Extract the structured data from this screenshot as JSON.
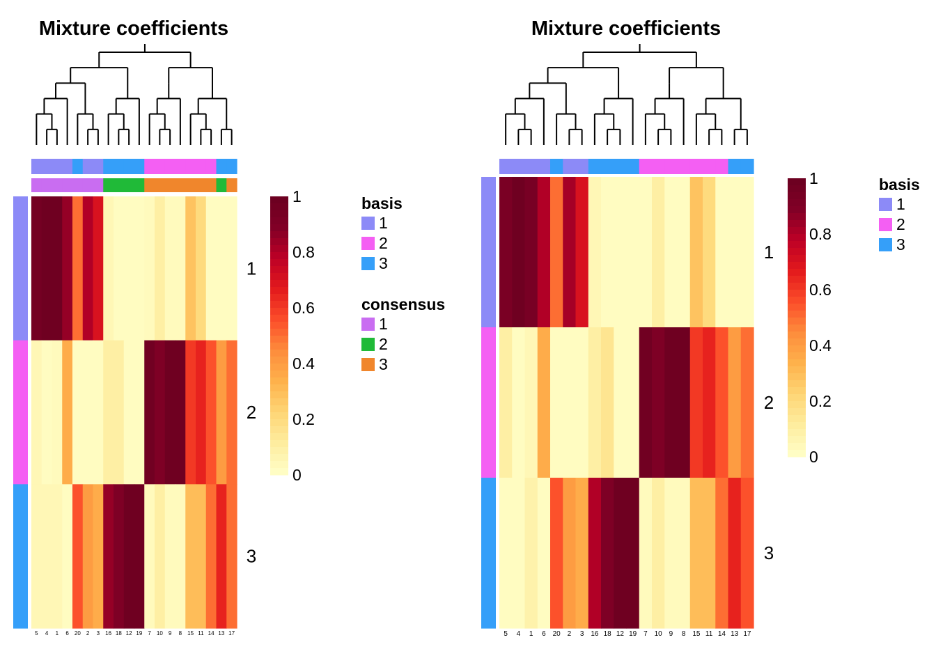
{
  "chart_data": [
    {
      "type": "heatmap",
      "title": "Mixture coefficients",
      "columns": [
        "5",
        "4",
        "1",
        "6",
        "20",
        "2",
        "3",
        "16",
        "18",
        "12",
        "19",
        "7",
        "10",
        "9",
        "8",
        "15",
        "11",
        "14",
        "13",
        "17"
      ],
      "rows": [
        "1",
        "2",
        "3"
      ],
      "values": [
        [
          0.95,
          0.98,
          0.98,
          0.85,
          0.5,
          0.8,
          0.7,
          0.05,
          0.02,
          0.02,
          0.02,
          0.03,
          0.1,
          0.03,
          0.03,
          0.28,
          0.2,
          0.02,
          0.02,
          0.02
        ],
        [
          0.05,
          0.02,
          0.03,
          0.35,
          0.02,
          0.02,
          0.02,
          0.1,
          0.1,
          0.02,
          0.02,
          0.97,
          0.9,
          0.98,
          0.98,
          0.6,
          0.65,
          0.55,
          0.4,
          0.5
        ],
        [
          0.05,
          0.05,
          0.05,
          0.02,
          0.55,
          0.4,
          0.35,
          0.85,
          0.9,
          0.98,
          0.98,
          0.03,
          0.1,
          0.03,
          0.03,
          0.3,
          0.3,
          0.5,
          0.65,
          0.5
        ]
      ],
      "column_annotations": [
        {
          "name": "basis",
          "values": [
            "1",
            "1",
            "1",
            "1",
            "3",
            "1",
            "1",
            "3",
            "3",
            "3",
            "3",
            "2",
            "2",
            "2",
            "2",
            "2",
            "2",
            "2",
            "3",
            "3"
          ]
        },
        {
          "name": "consensus",
          "values": [
            "1",
            "1",
            "1",
            "1",
            "1",
            "1",
            "1",
            "2",
            "2",
            "2",
            "2",
            "3",
            "3",
            "3",
            "3",
            "3",
            "3",
            "3",
            "2",
            "3"
          ]
        }
      ],
      "row_annotation": {
        "name": "basis",
        "values": [
          "1",
          "2",
          "3"
        ]
      },
      "colorbar": {
        "min": 0,
        "max": 1,
        "ticks": [
          "1",
          "0.8",
          "0.6",
          "0.4",
          "0.2",
          "0"
        ]
      },
      "legends": [
        {
          "title": "basis",
          "items": [
            {
              "label": "1",
              "color": "#8c8af7"
            },
            {
              "label": "2",
              "color": "#f45ff3"
            },
            {
              "label": "3",
              "color": "#359ff9"
            }
          ]
        },
        {
          "title": "consensus",
          "items": [
            {
              "label": "1",
              "color": "#c96df1"
            },
            {
              "label": "2",
              "color": "#20ba38"
            },
            {
              "label": "3",
              "color": "#f0862c"
            }
          ]
        }
      ]
    },
    {
      "type": "heatmap",
      "title": "Mixture coefficients",
      "columns": [
        "5",
        "4",
        "1",
        "6",
        "20",
        "2",
        "3",
        "16",
        "18",
        "12",
        "19",
        "7",
        "10",
        "9",
        "8",
        "15",
        "11",
        "14",
        "13",
        "17"
      ],
      "rows": [
        "1",
        "2",
        "3"
      ],
      "values": [
        [
          0.92,
          0.98,
          0.93,
          0.8,
          0.5,
          0.82,
          0.7,
          0.05,
          0.02,
          0.02,
          0.02,
          0.02,
          0.1,
          0.02,
          0.02,
          0.28,
          0.2,
          0.02,
          0.02,
          0.02
        ],
        [
          0.1,
          0.02,
          0.05,
          0.35,
          0.02,
          0.02,
          0.02,
          0.1,
          0.15,
          0.02,
          0.02,
          0.97,
          0.9,
          0.98,
          0.98,
          0.6,
          0.65,
          0.55,
          0.4,
          0.5
        ],
        [
          0.02,
          0.02,
          0.08,
          0.02,
          0.55,
          0.4,
          0.35,
          0.8,
          0.9,
          0.98,
          0.98,
          0.03,
          0.1,
          0.03,
          0.03,
          0.3,
          0.3,
          0.5,
          0.65,
          0.55
        ]
      ],
      "column_annotations": [
        {
          "name": "basis",
          "values": [
            "1",
            "1",
            "1",
            "1",
            "3",
            "1",
            "1",
            "3",
            "3",
            "3",
            "3",
            "2",
            "2",
            "2",
            "2",
            "2",
            "2",
            "2",
            "3",
            "3"
          ]
        }
      ],
      "row_annotation": {
        "name": "basis",
        "values": [
          "1",
          "2",
          "3"
        ]
      },
      "colorbar": {
        "min": 0,
        "max": 1,
        "ticks": [
          "1",
          "0.8",
          "0.6",
          "0.4",
          "0.2",
          "0"
        ]
      },
      "legends": [
        {
          "title": "basis",
          "items": [
            {
              "label": "1",
              "color": "#8c8af7"
            },
            {
              "label": "2",
              "color": "#f45ff3"
            },
            {
              "label": "3",
              "color": "#359ff9"
            }
          ]
        }
      ]
    }
  ],
  "palette": {
    "basis": {
      "1": "#8c8af7",
      "2": "#f45ff3",
      "3": "#359ff9"
    },
    "consensus": {
      "1": "#c96df1",
      "2": "#20ba38",
      "3": "#f0862c"
    },
    "heat": [
      "#ffffc8",
      "#feeda0",
      "#fed676",
      "#feb24c",
      "#fd8d3c",
      "#fc4e2a",
      "#e31a1c",
      "#bd0026",
      "#800026",
      "#6b0020"
    ]
  }
}
